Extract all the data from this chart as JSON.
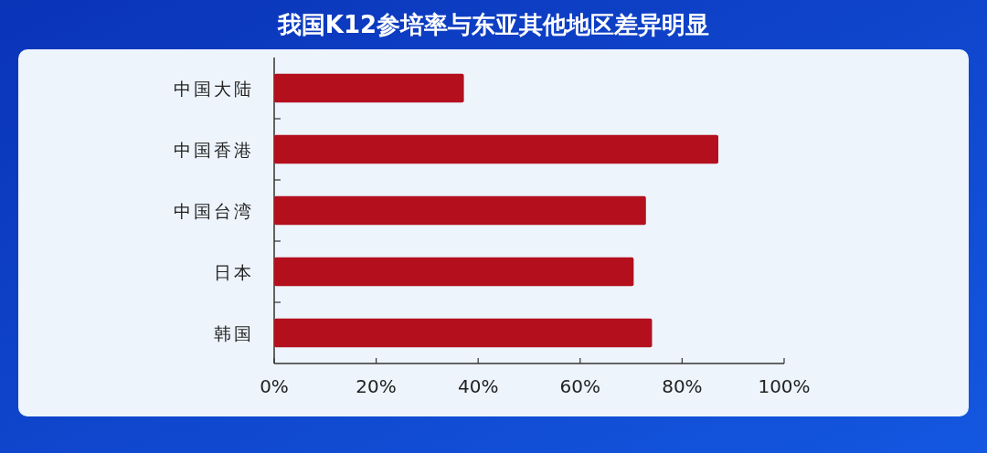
{
  "chart_data": {
    "type": "bar",
    "orientation": "horizontal",
    "title": "我国K12参培率与东亚其他地区差异明显",
    "categories": [
      "中国大陆",
      "中国香港",
      "中国台湾",
      "日本",
      "韩国"
    ],
    "values": [
      37.2,
      87.1,
      72.9,
      70.5,
      74.1
    ],
    "color": "#b30f1d",
    "xlim": [
      0,
      100
    ],
    "xticks": [
      {
        "value": 0,
        "label": "0%"
      },
      {
        "value": 20,
        "label": "20%"
      },
      {
        "value": 40,
        "label": "40%"
      },
      {
        "value": 60,
        "label": "60%"
      },
      {
        "value": 80,
        "label": "80%"
      },
      {
        "value": 100,
        "label": "100%"
      }
    ],
    "grid": false
  }
}
